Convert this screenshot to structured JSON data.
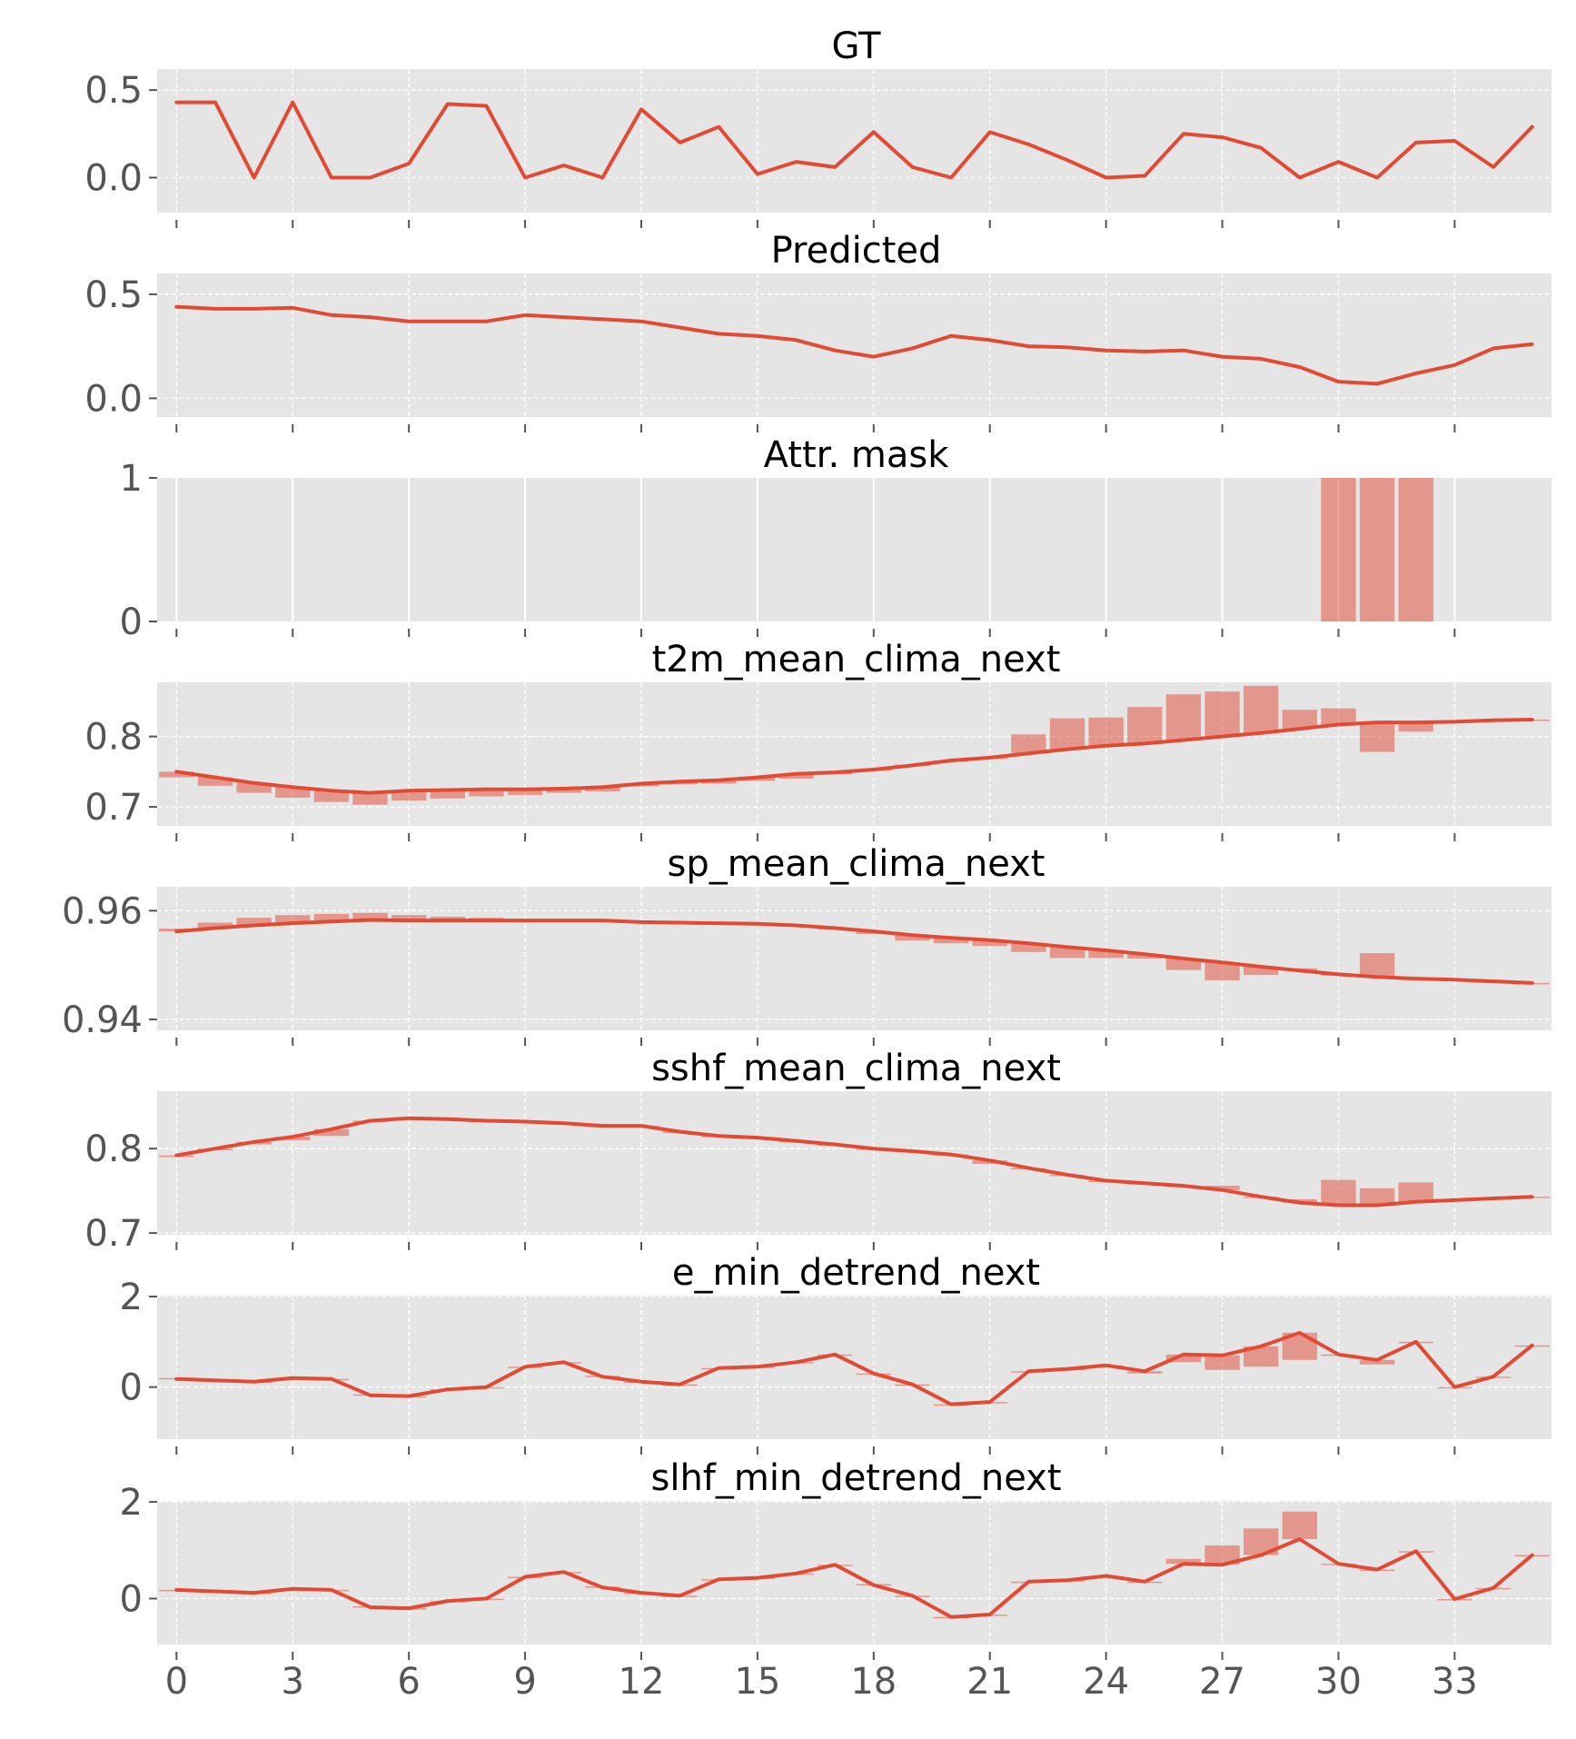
{
  "chart_data": {
    "type": "line",
    "x": [
      0,
      1,
      2,
      3,
      4,
      5,
      6,
      7,
      8,
      9,
      10,
      11,
      12,
      13,
      14,
      15,
      16,
      17,
      18,
      19,
      20,
      21,
      22,
      23,
      24,
      25,
      26,
      27,
      28,
      29,
      30,
      31,
      32,
      33,
      34,
      35
    ],
    "xlim": [
      -0.5,
      35.5
    ],
    "xticks": [
      0,
      3,
      6,
      9,
      12,
      15,
      18,
      21,
      24,
      27,
      30,
      33
    ],
    "colors": {
      "line": "#E24A33",
      "bar": "#E24A33",
      "background": "#E5E5E5"
    },
    "panels": [
      {
        "id": "gt",
        "title": "GT",
        "kind": "line",
        "ylim": [
          -0.2,
          0.62
        ],
        "yticks": [
          0.5,
          0.0
        ],
        "ytick_labels": [
          "0.5",
          "0.0"
        ],
        "series": [
          0.43,
          0.43,
          0.0,
          0.43,
          0.0,
          0.0,
          0.08,
          0.42,
          0.41,
          0.0,
          0.07,
          0.0,
          0.39,
          0.2,
          0.29,
          0.02,
          0.09,
          0.06,
          0.26,
          0.06,
          0.0,
          0.26,
          0.19,
          0.1,
          0.0,
          0.01,
          0.25,
          0.23,
          0.17,
          0.0,
          0.09,
          0.0,
          0.2,
          0.21,
          0.06,
          0.29
        ]
      },
      {
        "id": "predicted",
        "title": "Predicted",
        "kind": "line",
        "ylim": [
          -0.09,
          0.6
        ],
        "yticks": [
          0.5,
          0.0
        ],
        "ytick_labels": [
          "0.5",
          "0.0"
        ],
        "series": [
          0.44,
          0.43,
          0.43,
          0.435,
          0.4,
          0.39,
          0.37,
          0.37,
          0.37,
          0.4,
          0.39,
          0.38,
          0.37,
          0.34,
          0.31,
          0.3,
          0.28,
          0.23,
          0.2,
          0.24,
          0.3,
          0.28,
          0.25,
          0.245,
          0.23,
          0.225,
          0.23,
          0.2,
          0.19,
          0.15,
          0.08,
          0.07,
          0.12,
          0.16,
          0.24,
          0.26
        ]
      },
      {
        "id": "attr_mask",
        "title": "Attr. mask",
        "kind": "mask",
        "ylim": [
          0,
          1
        ],
        "yticks": [
          1,
          0
        ],
        "ytick_labels": [
          "1",
          "0"
        ],
        "series": [
          0,
          0,
          0,
          0,
          0,
          0,
          0,
          0,
          0,
          0,
          0,
          0,
          0,
          0,
          0,
          0,
          0,
          0,
          0,
          0,
          0,
          0,
          0,
          0,
          0,
          0,
          0,
          0,
          0,
          0,
          1,
          1,
          1,
          0,
          0,
          0
        ]
      },
      {
        "id": "t2m",
        "title": "t2m_mean_clima_next",
        "kind": "line_bar",
        "ylim": [
          0.673,
          0.877
        ],
        "yticks": [
          0.8,
          0.7
        ],
        "ytick_labels": [
          "0.8",
          "0.7"
        ],
        "series": [
          0.75,
          0.742,
          0.734,
          0.728,
          0.723,
          0.72,
          0.723,
          0.724,
          0.725,
          0.725,
          0.726,
          0.728,
          0.733,
          0.736,
          0.738,
          0.742,
          0.747,
          0.749,
          0.753,
          0.759,
          0.766,
          0.77,
          0.776,
          0.782,
          0.787,
          0.79,
          0.795,
          0.8,
          0.805,
          0.811,
          0.817,
          0.82,
          0.82,
          0.821,
          0.823,
          0.824
        ],
        "bars": [
          0.742,
          0.73,
          0.72,
          0.713,
          0.707,
          0.703,
          0.709,
          0.712,
          0.715,
          0.717,
          0.72,
          0.722,
          0.729,
          0.732,
          0.733,
          0.737,
          0.74,
          0.746,
          0.753,
          0.76,
          0.766,
          0.77,
          0.803,
          0.826,
          0.827,
          0.842,
          0.86,
          0.864,
          0.872,
          0.838,
          0.84,
          0.778,
          0.807,
          0.821,
          0.823,
          0.824
        ]
      },
      {
        "id": "sp",
        "title": "sp_mean_clima_next",
        "kind": "line_bar",
        "ylim": [
          0.938,
          0.9644
        ],
        "yticks": [
          0.96,
          0.94
        ],
        "ytick_labels": [
          "0.96",
          "0.94"
        ],
        "series": [
          0.9562,
          0.9568,
          0.9573,
          0.9577,
          0.958,
          0.9583,
          0.9582,
          0.9582,
          0.9582,
          0.9582,
          0.9582,
          0.9582,
          0.9579,
          0.9578,
          0.9577,
          0.9576,
          0.9573,
          0.9568,
          0.9562,
          0.9555,
          0.955,
          0.9546,
          0.954,
          0.9533,
          0.9527,
          0.952,
          0.9512,
          0.9505,
          0.9497,
          0.949,
          0.9483,
          0.9478,
          0.9475,
          0.9473,
          0.947,
          0.9467
        ],
        "bars": [
          0.9567,
          0.9578,
          0.9587,
          0.9592,
          0.9594,
          0.9596,
          0.9592,
          0.9589,
          0.9587,
          0.9585,
          0.9583,
          0.9582,
          0.958,
          0.9578,
          0.9577,
          0.9576,
          0.9572,
          0.9567,
          0.9557,
          0.9545,
          0.954,
          0.9535,
          0.9524,
          0.9513,
          0.9513,
          0.9512,
          0.9491,
          0.9472,
          0.9482,
          0.9494,
          0.9482,
          0.9522,
          0.9475,
          0.9473,
          0.947,
          0.9467
        ]
      },
      {
        "id": "sshf",
        "title": "sshf_mean_clima_next",
        "kind": "line_bar",
        "ylim": [
          0.698,
          0.868
        ],
        "yticks": [
          0.8,
          0.7
        ],
        "ytick_labels": [
          "0.8",
          "0.7"
        ],
        "series": [
          0.792,
          0.8,
          0.808,
          0.814,
          0.823,
          0.833,
          0.836,
          0.835,
          0.833,
          0.832,
          0.83,
          0.827,
          0.827,
          0.82,
          0.815,
          0.813,
          0.809,
          0.805,
          0.8,
          0.797,
          0.793,
          0.786,
          0.777,
          0.769,
          0.762,
          0.759,
          0.756,
          0.751,
          0.743,
          0.736,
          0.733,
          0.733,
          0.737,
          0.739,
          0.741,
          0.743
        ],
        "bars": [
          0.79,
          0.798,
          0.805,
          0.81,
          0.815,
          0.833,
          0.836,
          0.835,
          0.833,
          0.832,
          0.83,
          0.827,
          0.827,
          0.82,
          0.815,
          0.813,
          0.809,
          0.805,
          0.8,
          0.797,
          0.793,
          0.782,
          0.777,
          0.769,
          0.762,
          0.759,
          0.756,
          0.756,
          0.743,
          0.74,
          0.763,
          0.753,
          0.76,
          0.739,
          0.741,
          0.743
        ]
      },
      {
        "id": "e_min",
        "title": "e_min_detrend_next",
        "kind": "line_bar",
        "ylim": [
          -1.15,
          2.02
        ],
        "yticks": [
          2,
          0
        ],
        "ytick_labels": [
          "2",
          "0"
        ],
        "series": [
          0.18,
          0.15,
          0.12,
          0.2,
          0.18,
          -0.18,
          -0.2,
          -0.05,
          0.0,
          0.45,
          0.55,
          0.23,
          0.12,
          0.06,
          0.42,
          0.45,
          0.55,
          0.72,
          0.3,
          0.06,
          -0.38,
          -0.33,
          0.35,
          0.4,
          0.48,
          0.35,
          0.72,
          0.7,
          0.9,
          1.2,
          0.72,
          0.6,
          1.0,
          0.0,
          0.23,
          0.92
        ],
        "bars": [
          0.2,
          0.15,
          0.12,
          0.2,
          0.18,
          -0.16,
          -0.2,
          -0.05,
          0.0,
          0.45,
          0.55,
          0.25,
          0.12,
          0.06,
          0.42,
          0.45,
          0.55,
          0.72,
          0.3,
          0.06,
          -0.38,
          -0.33,
          0.35,
          0.4,
          0.48,
          0.3,
          0.55,
          0.38,
          0.45,
          0.6,
          0.72,
          0.5,
          1.0,
          0.0,
          0.23,
          0.92
        ]
      },
      {
        "id": "slhf_min",
        "title": "slhf_min_detrend_next",
        "kind": "line_bar",
        "ylim": [
          -0.95,
          2.02
        ],
        "yticks": [
          2,
          0
        ],
        "ytick_labels": [
          "2",
          "0"
        ],
        "series": [
          0.18,
          0.15,
          0.12,
          0.2,
          0.18,
          -0.18,
          -0.2,
          -0.05,
          0.0,
          0.45,
          0.55,
          0.23,
          0.12,
          0.06,
          0.4,
          0.43,
          0.52,
          0.7,
          0.28,
          0.06,
          -0.38,
          -0.33,
          0.35,
          0.38,
          0.47,
          0.35,
          0.72,
          0.7,
          0.9,
          1.23,
          0.72,
          0.6,
          0.98,
          -0.01,
          0.22,
          0.9
        ],
        "bars": [
          0.18,
          0.15,
          0.12,
          0.2,
          0.18,
          -0.16,
          -0.2,
          -0.05,
          0.0,
          0.45,
          0.55,
          0.25,
          0.12,
          0.06,
          0.4,
          0.43,
          0.52,
          0.7,
          0.3,
          0.06,
          -0.38,
          -0.33,
          0.35,
          0.38,
          0.47,
          0.35,
          0.82,
          1.1,
          1.45,
          1.8,
          0.72,
          0.6,
          0.98,
          -0.01,
          0.22,
          0.9
        ]
      }
    ]
  }
}
